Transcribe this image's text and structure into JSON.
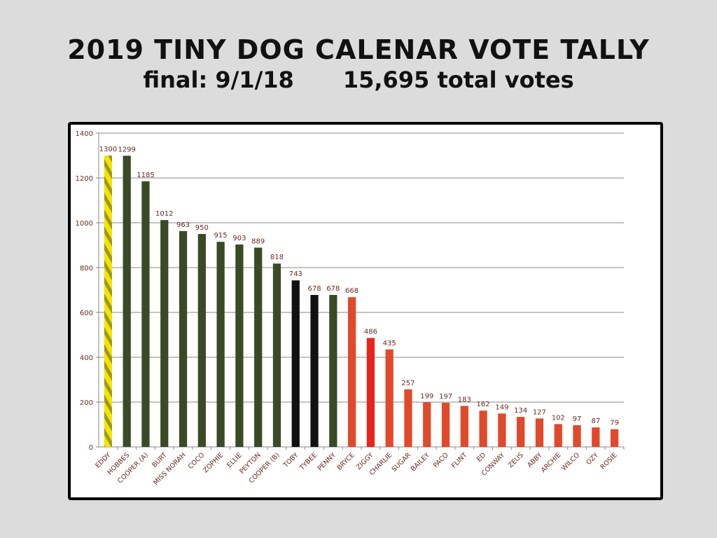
{
  "header": {
    "title": "2019 TINY DOG CALENAR VOTE TALLY",
    "final_label": "final: 9/1/18",
    "total_label": "15,695 total votes"
  },
  "colors": {
    "background": "#dcdcdc",
    "winner_yellow": "#f5e400",
    "winner_stripe": "#9a9a20",
    "dark_green": "#3b4a26",
    "black": "#111111",
    "red_bright": "#e8231c",
    "red_orange": "#e0492a",
    "grid": "#8a8a8a",
    "label": "#6b2a20"
  },
  "chart_data": {
    "type": "bar",
    "title": "",
    "xlabel": "",
    "ylabel": "",
    "ylim": [
      0,
      1400
    ],
    "yticks": [
      0,
      200,
      400,
      600,
      800,
      1000,
      1200,
      1400
    ],
    "grid": true,
    "legend": "none",
    "categories": [
      "EDDY",
      "HOBBES",
      "COOPER (A)",
      "BURT",
      "MISS NORAH",
      "COCO",
      "ZOPHIE",
      "ELLIE",
      "PEYTON",
      "COOPER (B)",
      "TOBY",
      "TYBEE",
      "PENNY",
      "BRYCE",
      "ZIGGY",
      "CHARLIE",
      "SUGAR",
      "BAILEY",
      "PACO",
      "FLINT",
      "ED",
      "CONWAY",
      "ZEUS",
      "ABBY",
      "ARCHIE",
      "WILCO",
      "OZY",
      "ROSIE"
    ],
    "values": [
      1300,
      1299,
      1185,
      1012,
      963,
      950,
      915,
      903,
      889,
      818,
      743,
      678,
      678,
      668,
      486,
      435,
      257,
      199,
      197,
      183,
      162,
      149,
      134,
      127,
      102,
      97,
      87,
      79
    ],
    "bar_colors": [
      "winner",
      "dark_green",
      "dark_green",
      "dark_green",
      "dark_green",
      "dark_green",
      "dark_green",
      "dark_green",
      "dark_green",
      "dark_green",
      "black",
      "black",
      "dark_green",
      "red_orange",
      "red_bright",
      "red_orange",
      "red_orange",
      "red_orange",
      "red_orange",
      "red_orange",
      "red_orange",
      "red_orange",
      "red_orange",
      "red_orange",
      "red_orange",
      "red_orange",
      "red_orange",
      "red_orange"
    ]
  }
}
